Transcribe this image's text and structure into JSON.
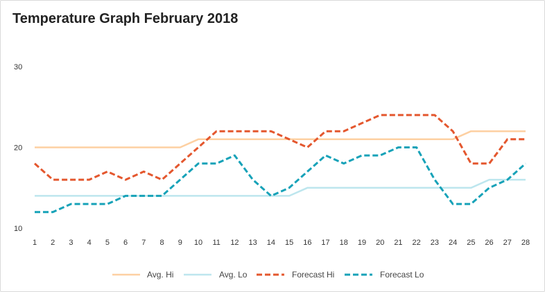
{
  "chart_data": {
    "type": "line",
    "title": "Temperature Graph February 2018",
    "xlabel": "",
    "ylabel": "",
    "x": [
      1,
      2,
      3,
      4,
      5,
      6,
      7,
      8,
      9,
      10,
      11,
      12,
      13,
      14,
      15,
      16,
      17,
      18,
      19,
      20,
      21,
      22,
      23,
      24,
      25,
      26,
      27,
      28
    ],
    "ylim": [
      10,
      30
    ],
    "yticks": [
      10,
      20,
      30
    ],
    "grid": false,
    "legend": "bottom",
    "series": [
      {
        "name": "Avg. Hi",
        "color": "#fdd0a2",
        "dashed": false,
        "values": [
          20,
          20,
          20,
          20,
          20,
          20,
          20,
          20,
          20,
          21,
          21,
          21,
          21,
          21,
          21,
          21,
          21,
          21,
          21,
          21,
          21,
          21,
          21,
          21,
          22,
          22,
          22,
          22
        ]
      },
      {
        "name": "Avg. Lo",
        "color": "#bde6ee",
        "dashed": false,
        "values": [
          14,
          14,
          14,
          14,
          14,
          14,
          14,
          14,
          14,
          14,
          14,
          14,
          14,
          14,
          14,
          15,
          15,
          15,
          15,
          15,
          15,
          15,
          15,
          15,
          15,
          16,
          16,
          16
        ]
      },
      {
        "name": "Forecast Hi",
        "color": "#e4572e",
        "dashed": true,
        "values": [
          18,
          16,
          16,
          16,
          17,
          16,
          17,
          16,
          18,
          20,
          22,
          22,
          22,
          22,
          21,
          20,
          22,
          22,
          23,
          24,
          24,
          24,
          24,
          22,
          18,
          18,
          21,
          21
        ]
      },
      {
        "name": "Forecast Lo",
        "color": "#17a2b8",
        "dashed": true,
        "values": [
          12,
          12,
          13,
          13,
          13,
          14,
          14,
          14,
          16,
          18,
          18,
          19,
          16,
          14,
          15,
          17,
          19,
          18,
          19,
          19,
          20,
          20,
          16,
          13,
          13,
          15,
          16,
          18
        ]
      }
    ]
  }
}
